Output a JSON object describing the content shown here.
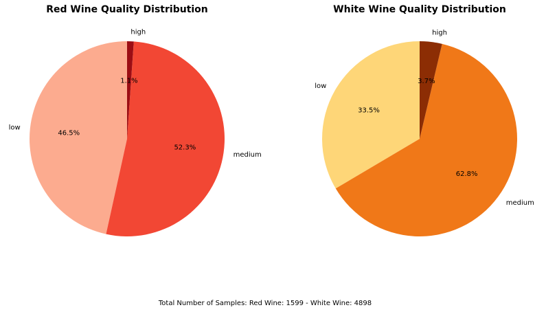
{
  "chart_data": [
    {
      "type": "pie",
      "title": "Red Wine Quality Distribution",
      "categories": [
        "low",
        "medium",
        "high"
      ],
      "values": [
        46.5,
        52.3,
        1.1
      ],
      "percent_labels": [
        "46.5%",
        "52.3%",
        "1.1%"
      ],
      "colors": [
        "#fcab8f",
        "#f24734",
        "#9c0d14"
      ],
      "start_angle_deg": 90,
      "direction": "counterclockwise"
    },
    {
      "type": "pie",
      "title": "White Wine Quality Distribution",
      "categories": [
        "low",
        "medium",
        "high"
      ],
      "values": [
        33.5,
        62.8,
        3.7
      ],
      "percent_labels": [
        "33.5%",
        "62.8%",
        "3.7%"
      ],
      "colors": [
        "#fed678",
        "#f07818",
        "#8c2d04"
      ],
      "start_angle_deg": 90,
      "direction": "counterclockwise"
    }
  ],
  "footer_text": "Total Number of Samples: Red Wine: 1599 - White Wine: 4898"
}
